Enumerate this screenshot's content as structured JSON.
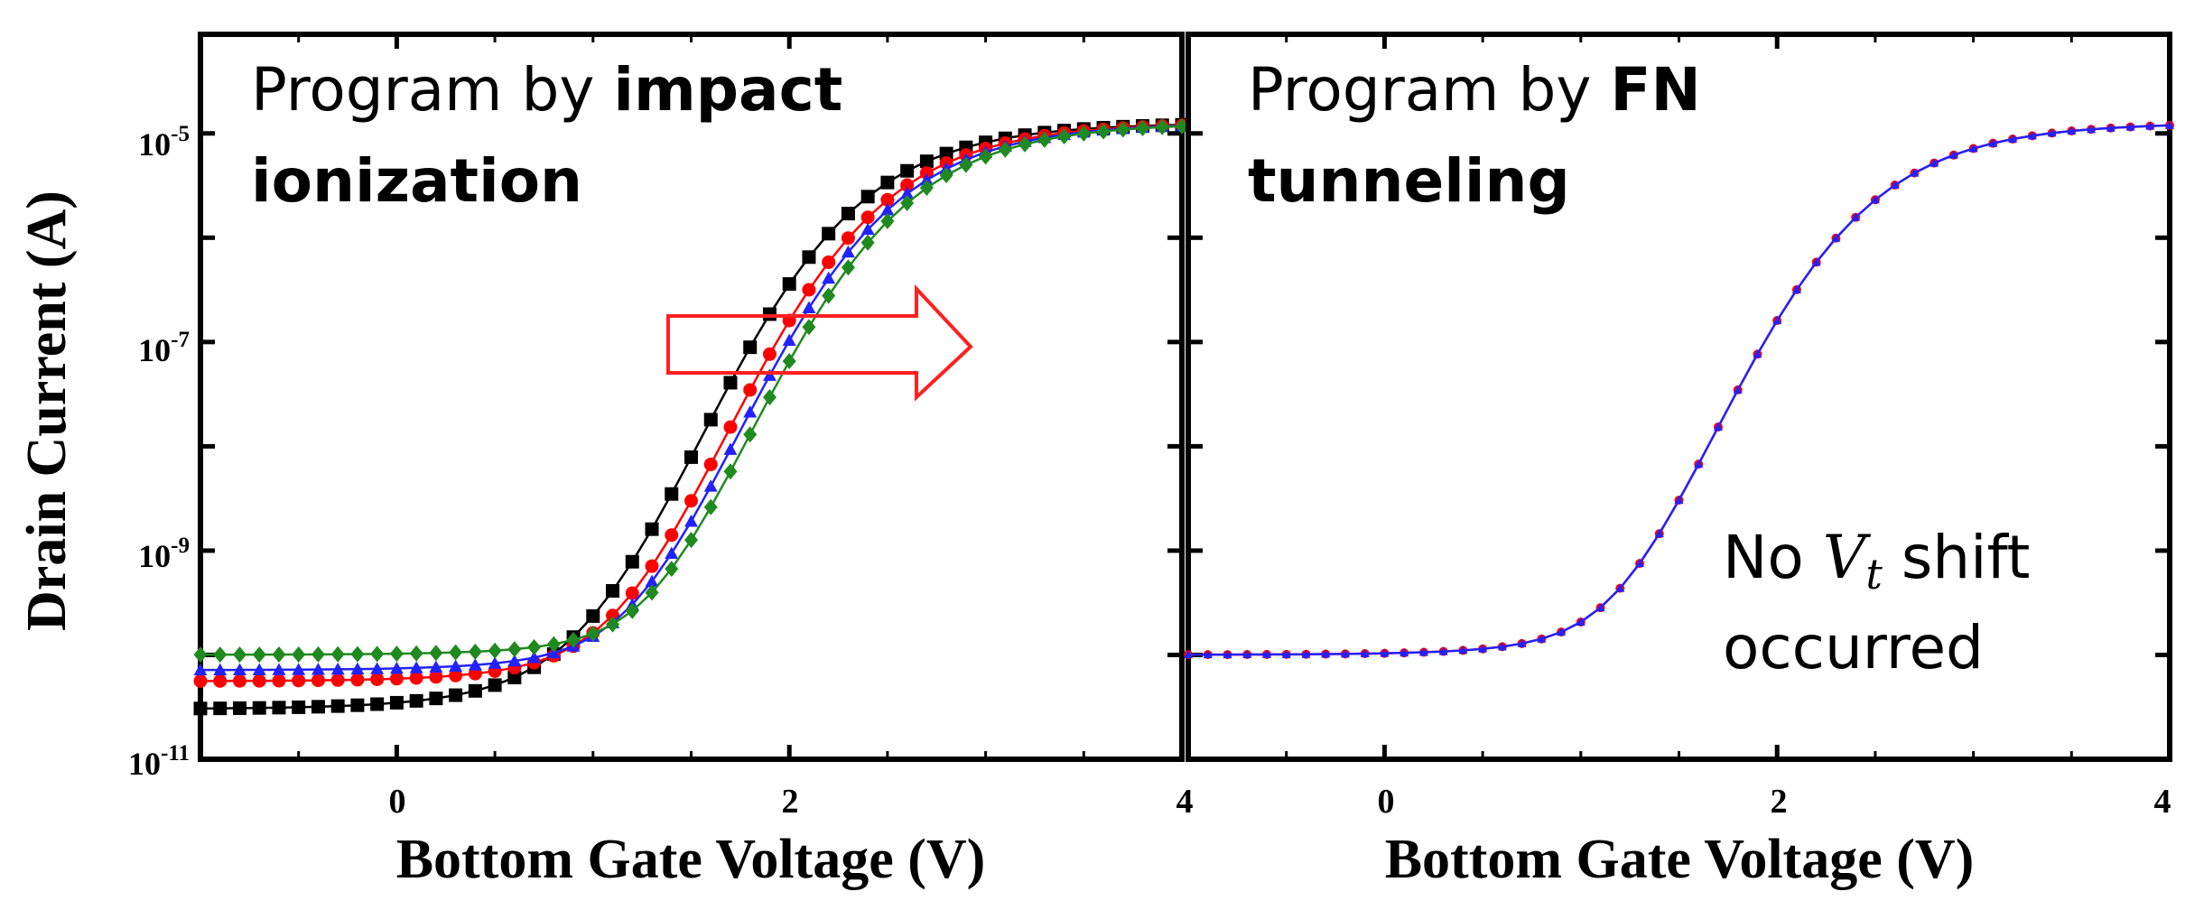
{
  "chart_data": [
    {
      "type": "scatter",
      "panel": "left",
      "title_parts": {
        "normal": "Program by ",
        "bold_1": "impact",
        "bold_2": "ionization"
      },
      "xlabel": "Bottom Gate Voltage (V)",
      "ylabel": "Drain Current (A)",
      "x_ticks": [
        "0",
        "2",
        "4"
      ],
      "y_ticks": [
        {
          "base": "10",
          "exp": "-11",
          "value": 1e-11
        },
        {
          "base": "10",
          "exp": "-9",
          "value": 1e-09
        },
        {
          "base": "10",
          "exp": "-7",
          "value": 1e-07
        },
        {
          "base": "10",
          "exp": "-5",
          "value": 1e-05
        }
      ],
      "xlim": [
        -1,
        4
      ],
      "ylim_log10": [
        -11,
        -4.05
      ],
      "x_step": 0.1,
      "annotation": "red outlined arrow pointing right (Vt shift direction)",
      "series": [
        {
          "name": "black squares",
          "marker": "square",
          "color": "#000000",
          "shift": 0.0,
          "floor_log": -10.72
        },
        {
          "name": "red circles",
          "marker": "circle",
          "color": "#ff0000",
          "shift": 0.12,
          "floor_log": -10.35
        },
        {
          "name": "blue triangles",
          "marker": "triangle",
          "color": "#2222ff",
          "shift": 0.18,
          "floor_log": -10.22
        },
        {
          "name": "green diamonds",
          "marker": "diamond",
          "color": "#1f8a1f",
          "shift": 0.24,
          "floor_log": -10.05
        }
      ]
    },
    {
      "type": "scatter",
      "panel": "right",
      "title_parts": {
        "normal": "Program by ",
        "bold_1": "FN",
        "bold_2": "tunneling"
      },
      "xlabel": "Bottom Gate Voltage (V)",
      "x_ticks": [
        "0",
        "4",
        "2"
      ],
      "xlim": [
        -1,
        4
      ],
      "ylim_log10": [
        -11,
        -4.05
      ],
      "x_step": 0.1,
      "note_parts": {
        "line1_a": "No ",
        "vt_v": "V",
        "vt_sub": "t",
        "line1_b": " shift",
        "line2": "occurred"
      },
      "series": [
        {
          "name": "red",
          "marker": "circle",
          "color": "#ff0000",
          "shift": 0.12,
          "floor_log": -10.05
        },
        {
          "name": "blue",
          "marker": "triangle",
          "color": "#2222ff",
          "shift": 0.12,
          "floor_log": -10.05
        }
      ]
    }
  ]
}
